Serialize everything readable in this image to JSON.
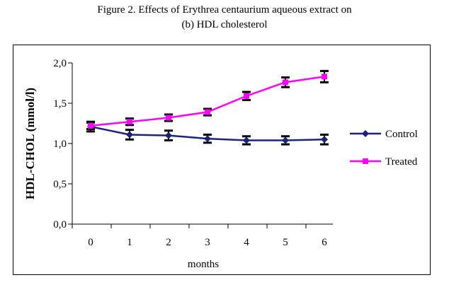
{
  "figure": {
    "caption_line1": "Figure 2. Effects of Erythrea centaurium aqueous extract on",
    "caption_line2": "(b) HDL cholesterol"
  },
  "chart_data": {
    "type": "line",
    "xlabel": "months",
    "ylabel": "HDL-CHOL (mmol/l)",
    "x": [
      0,
      1,
      2,
      3,
      4,
      5,
      6
    ],
    "xticks": [
      "0",
      "1",
      "2",
      "3",
      "4",
      "5",
      "6"
    ],
    "ylim": [
      0,
      2
    ],
    "yticks": [
      "0,0",
      "0,5",
      "1,0",
      "1,5",
      "2,0"
    ],
    "grid": false,
    "legend_position": "right",
    "series": [
      {
        "name": "Control",
        "color": "#1a237e",
        "marker": "diamond",
        "values": [
          1.21,
          1.11,
          1.1,
          1.06,
          1.04,
          1.04,
          1.05
        ],
        "errors": [
          0.06,
          0.06,
          0.06,
          0.05,
          0.05,
          0.05,
          0.06
        ]
      },
      {
        "name": "Treated",
        "color": "#ff00ff",
        "marker": "square",
        "values": [
          1.22,
          1.27,
          1.32,
          1.39,
          1.59,
          1.76,
          1.83
        ],
        "errors": [
          0.04,
          0.04,
          0.04,
          0.04,
          0.05,
          0.06,
          0.07
        ]
      }
    ]
  }
}
